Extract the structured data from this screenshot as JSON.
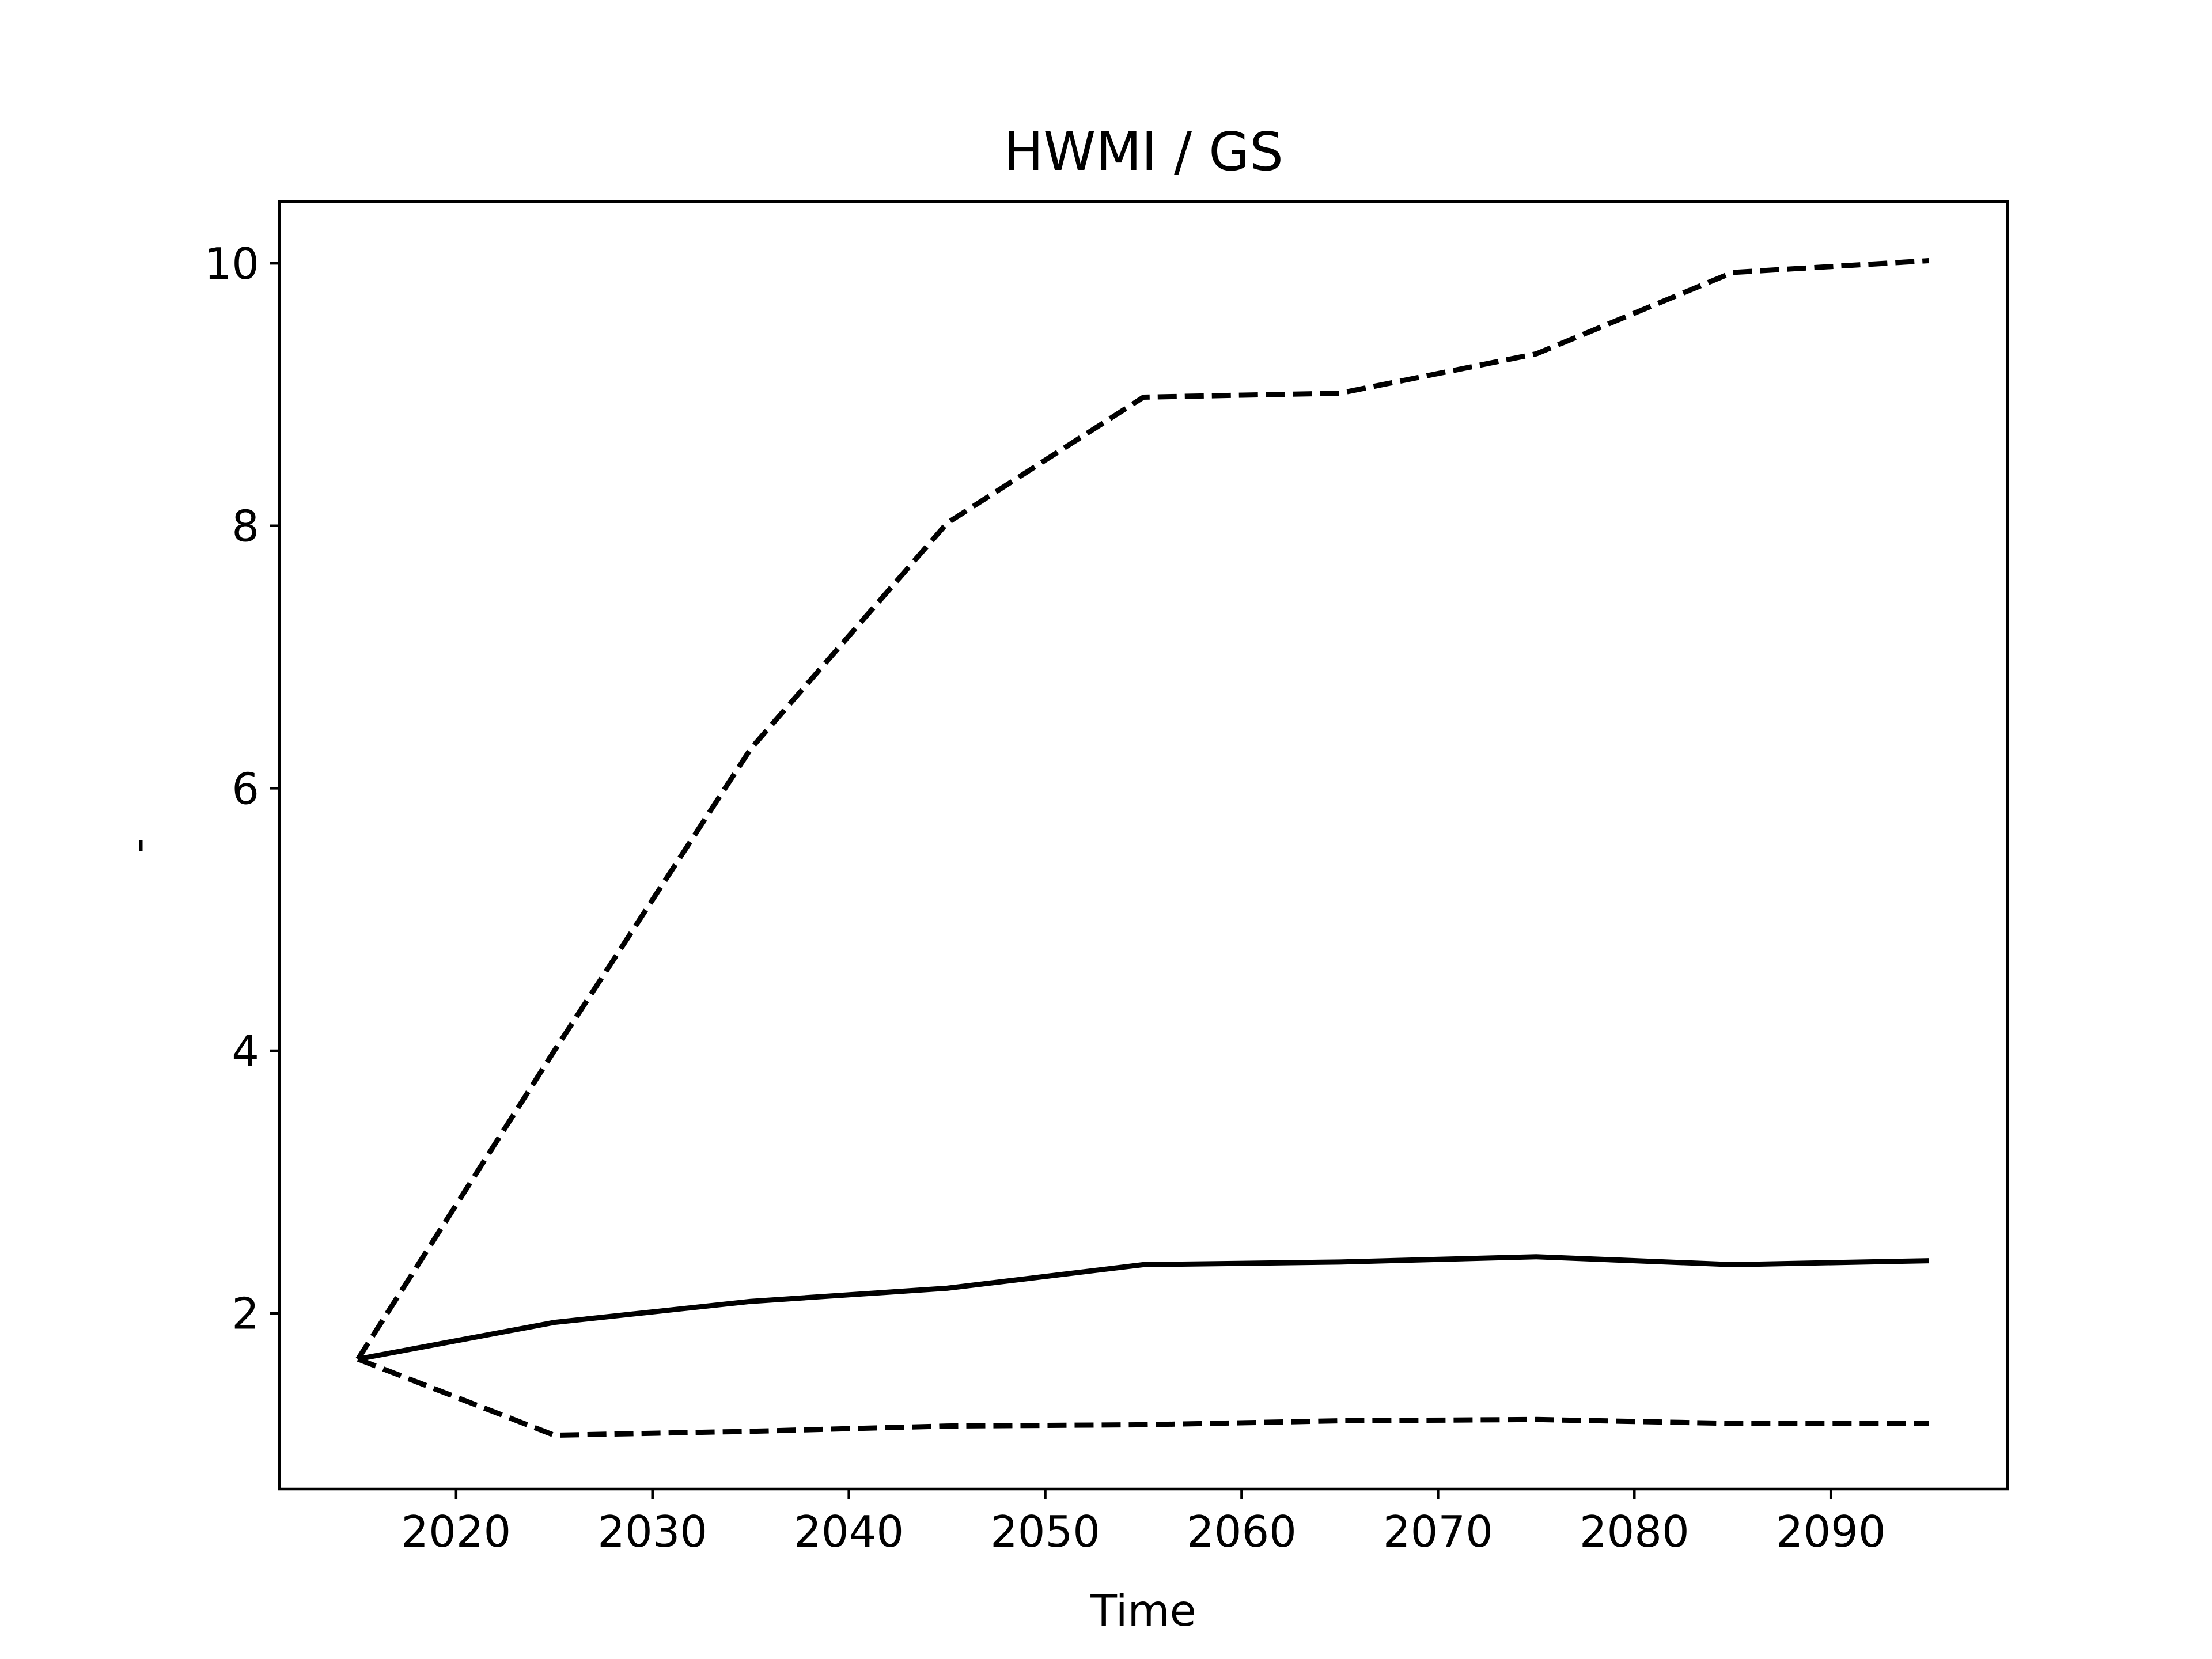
{
  "chart_data": {
    "type": "line",
    "title": "HWMI / GS",
    "xlabel": "Time",
    "ylabel": "-",
    "x": [
      2015,
      2025,
      2035,
      2045,
      2055,
      2065,
      2075,
      2085,
      2095
    ],
    "series": [
      {
        "values": [
          1.65,
          1.93,
          2.09,
          2.19,
          2.37,
          2.39,
          2.43,
          2.37,
          2.4
        ],
        "style": "solid",
        "color": "#000000"
      },
      {
        "values": [
          1.65,
          4.0,
          6.3,
          8.02,
          8.98,
          9.01,
          9.31,
          9.93,
          10.02
        ],
        "style": "dashed",
        "color": "#000000"
      },
      {
        "values": [
          1.65,
          1.07,
          1.1,
          1.14,
          1.15,
          1.18,
          1.19,
          1.16,
          1.16
        ],
        "style": "dashed",
        "color": "#000000"
      }
    ],
    "xlim": [
      2011,
      2099
    ],
    "ylim": [
      0.66,
      10.47
    ],
    "xticks": [
      2020,
      2030,
      2040,
      2050,
      2060,
      2070,
      2080,
      2090
    ],
    "yticks": [
      2,
      4,
      6,
      8,
      10
    ],
    "grid": false,
    "legend": "none"
  }
}
